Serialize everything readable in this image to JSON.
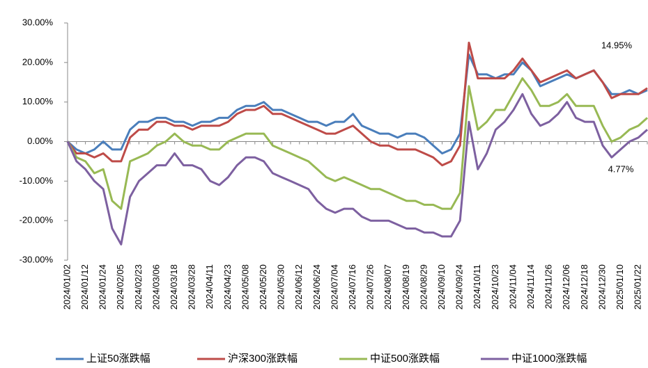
{
  "chart_data": {
    "type": "line",
    "categories": [
      "2024/01/02",
      null,
      "2024/01/12",
      null,
      "2024/01/24",
      null,
      "2024/02/05",
      null,
      "2024/02/23",
      null,
      "2024/03/06",
      null,
      "2024/03/18",
      null,
      "2024/03/28",
      null,
      "2024/04/11",
      null,
      "2024/04/23",
      null,
      "2024/05/08",
      null,
      "2024/05/20",
      null,
      "2024/05/30",
      null,
      "2024/06/12",
      null,
      "2024/06/24",
      null,
      "2024/07/04",
      null,
      "2024/07/16",
      null,
      "2024/07/26",
      null,
      "2024/08/07",
      null,
      "2024/08/19",
      null,
      "2024/08/29",
      null,
      "2024/09/10",
      null,
      "2024/09/24",
      null,
      "2024/10/11",
      null,
      "2024/10/23",
      null,
      "2024/11/04",
      null,
      "2024/11/14",
      null,
      "2024/11/26",
      null,
      "2024/12/06",
      null,
      "2024/12/18",
      null,
      "2024/12/30",
      null,
      "2025/01/10",
      null,
      "2025/01/22",
      null
    ],
    "series": [
      {
        "name": "上证50涨跌幅",
        "color": "#4a7ebb",
        "values": [
          0,
          -2,
          -3,
          -2,
          0,
          -2,
          -2,
          3,
          5,
          5,
          6,
          6,
          5,
          5,
          4,
          5,
          5,
          6,
          6,
          8,
          9,
          9,
          10,
          8,
          8,
          7,
          6,
          5,
          5,
          4,
          5,
          5,
          7,
          4,
          3,
          2,
          2,
          1,
          2,
          2,
          1,
          -1,
          -3,
          -2,
          2,
          22,
          17,
          17,
          16,
          17,
          17,
          20,
          18,
          14,
          15,
          16,
          17,
          16,
          17,
          18,
          15,
          12,
          12,
          13,
          12,
          13
        ]
      },
      {
        "name": "沪深300涨跌幅",
        "color": "#be4b48",
        "values": [
          0,
          -3,
          -3,
          -4,
          -3,
          -5,
          -5,
          1,
          3,
          3,
          5,
          5,
          4,
          4,
          3,
          4,
          4,
          4,
          5,
          7,
          8,
          8,
          9,
          7,
          7,
          6,
          5,
          4,
          3,
          2,
          2,
          3,
          4,
          2,
          0,
          -1,
          -1,
          -2,
          -2,
          -2,
          -3,
          -4,
          -6,
          -5,
          -1,
          25,
          16,
          16,
          16,
          16,
          18,
          21,
          18,
          15,
          16,
          17,
          18,
          16,
          17,
          18,
          15,
          11,
          12,
          12,
          12,
          13.5
        ]
      },
      {
        "name": "中证500涨跌幅",
        "color": "#98b954",
        "values": [
          0,
          -4,
          -5,
          -8,
          -7,
          -15,
          -17,
          -5,
          -4,
          -3,
          -1,
          0,
          2,
          0,
          -1,
          -1,
          -2,
          -2,
          0,
          1,
          2,
          2,
          2,
          -1,
          -2,
          -3,
          -4,
          -5,
          -7,
          -9,
          -10,
          -9,
          -10,
          -11,
          -12,
          -12,
          -13,
          -14,
          -15,
          -15,
          -16,
          -16,
          -17,
          -17,
          -13,
          14,
          3,
          5,
          8,
          8,
          12,
          16,
          13,
          9,
          9,
          10,
          12,
          9,
          9,
          9,
          4,
          0,
          1,
          3,
          4,
          6
        ]
      },
      {
        "name": "中证1000涨跌幅",
        "color": "#7d60a0",
        "values": [
          0,
          -5,
          -7,
          -10,
          -12,
          -22,
          -26,
          -14,
          -10,
          -8,
          -6,
          -6,
          -3,
          -6,
          -6,
          -7,
          -10,
          -11,
          -9,
          -6,
          -4,
          -4,
          -5,
          -8,
          -9,
          -10,
          -11,
          -12,
          -15,
          -17,
          -18,
          -17,
          -17,
          -19,
          -20,
          -20,
          -20,
          -21,
          -22,
          -22,
          -23,
          -23,
          -24,
          -24,
          -20,
          5,
          -7,
          -3,
          3,
          5,
          8,
          12,
          7,
          4,
          5,
          7,
          10,
          6,
          5,
          5,
          -1,
          -4,
          -2,
          0,
          1,
          3
        ]
      }
    ],
    "ylim": [
      -30,
      30
    ],
    "yticks": [
      {
        "value": -30,
        "label": "-30.00%"
      },
      {
        "value": -20,
        "label": "-20.00%"
      },
      {
        "value": -10,
        "label": "-10.00%"
      },
      {
        "value": 0,
        "label": "0.00%"
      },
      {
        "value": 10,
        "label": "10.00%"
      },
      {
        "value": 20,
        "label": "20.00%"
      },
      {
        "value": 30,
        "label": "30.00%"
      }
    ],
    "annotations": [
      "14.95%",
      "4.77%"
    ],
    "grid": false
  }
}
